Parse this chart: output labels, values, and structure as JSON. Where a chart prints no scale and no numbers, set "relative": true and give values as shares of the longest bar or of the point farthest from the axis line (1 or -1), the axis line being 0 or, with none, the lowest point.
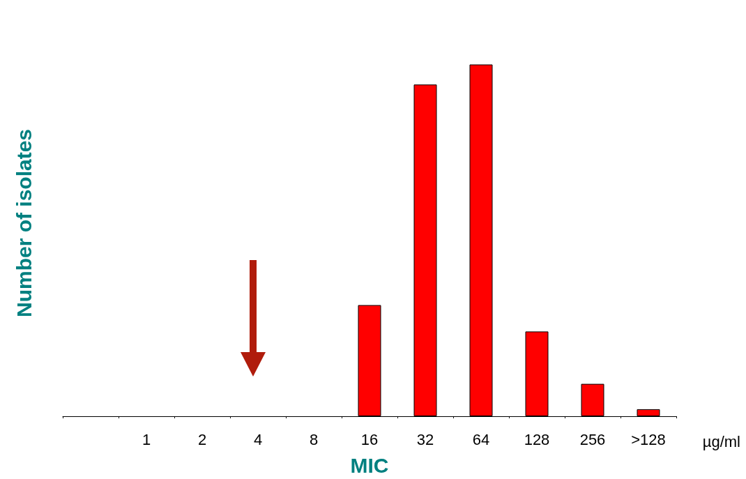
{
  "chart_data": {
    "type": "bar",
    "relative": true,
    "xlabel": "MIC",
    "ylabel": "Number of isolates",
    "annotations": [
      "µg/ml"
    ],
    "categories": [
      null,
      "1",
      "2",
      "4",
      "8",
      "16",
      "32",
      "64",
      "128",
      "256",
      ">128"
    ],
    "values": [
      0,
      0,
      0,
      0,
      0,
      0.316,
      0.943,
      1,
      0.241,
      0.092,
      0.02
    ],
    "color": "#ff0000",
    "grid": false
  }
}
